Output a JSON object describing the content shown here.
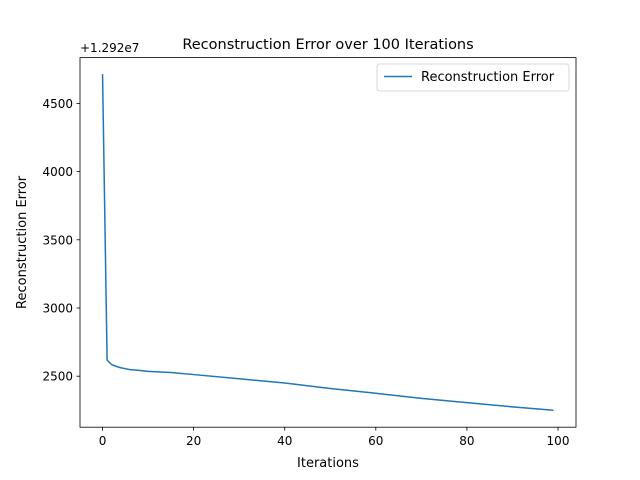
{
  "chart_data": {
    "type": "line",
    "title": "Reconstruction Error over 100 Iterations",
    "xlabel": "Iterations",
    "ylabel": "Reconstruction Error",
    "offset_label": "+1.292e7",
    "xlim": [
      -4.95,
      103.95
    ],
    "ylim": [
      2126,
      4836
    ],
    "xticks": [
      0,
      20,
      40,
      60,
      80,
      100
    ],
    "yticks": [
      2500,
      3000,
      3500,
      4000,
      4500
    ],
    "grid": false,
    "legend_position": "upper right",
    "series": [
      {
        "name": "Reconstruction Error",
        "color": "#1f77b4",
        "x": [
          0,
          1,
          2,
          3,
          4,
          5,
          6,
          8,
          10,
          15,
          20,
          30,
          40,
          50,
          60,
          70,
          80,
          90,
          99
        ],
        "y": [
          4715,
          2618,
          2585,
          2572,
          2562,
          2555,
          2548,
          2543,
          2535,
          2527,
          2512,
          2481,
          2450,
          2410,
          2375,
          2337,
          2306,
          2275,
          2250
        ]
      }
    ]
  }
}
